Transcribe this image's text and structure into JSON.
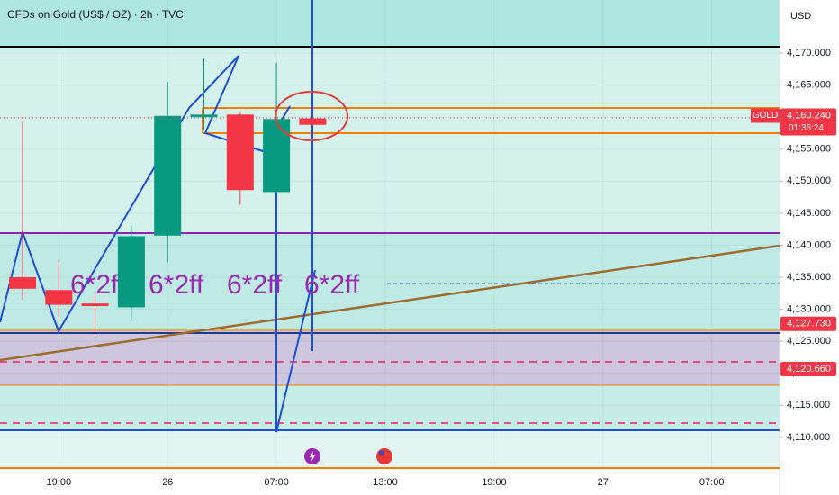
{
  "chart_data": {
    "type": "candlestick",
    "title": "CFDs on Gold (US$ / OZ) · 2h · TVC",
    "y_axis_label": "USD",
    "categories": [
      null,
      "19:00",
      null,
      null,
      "26",
      null,
      null,
      "07:00",
      null,
      null,
      "13:00",
      null,
      null,
      "19:00",
      null,
      null,
      "27",
      null,
      null,
      "07:00",
      null
    ],
    "open": [
      4135.0,
      4133.0,
      4130.9,
      4130.3,
      4141.5,
      4160.0,
      4160.4,
      4148.3,
      4159.8,
      null,
      null,
      null,
      null,
      null,
      null,
      null,
      null,
      null,
      null,
      null,
      null
    ],
    "high": [
      4159.3,
      4137.6,
      4132.4,
      4143.1,
      4165.5,
      4169.2,
      4160.6,
      4168.5,
      4160.0,
      null,
      null,
      null,
      null,
      null,
      null,
      null,
      null,
      null,
      null,
      null,
      null
    ],
    "low": [
      4131.5,
      4128.6,
      4126.2,
      4128.2,
      4137.3,
      4158.0,
      4146.3,
      4148.2,
      4158.6,
      null,
      null,
      null,
      null,
      null,
      null,
      null,
      null,
      null,
      null,
      null,
      null
    ],
    "close": [
      4133.2,
      4130.7,
      4130.5,
      4141.4,
      4160.2,
      4160.4,
      4148.6,
      4159.7,
      4158.8,
      null,
      null,
      null,
      null,
      null,
      null,
      null,
      null,
      null,
      null,
      null,
      null
    ],
    "up_color": "#089981",
    "down_color": "#f23645",
    "ylim": [
      4105.2,
      4178.3
    ],
    "yticks": [
      {
        "value": 4110,
        "label": "4,110.000"
      },
      {
        "value": 4115,
        "label": "4,115.000"
      },
      {
        "value": 4120,
        "label": "4,120.000"
      },
      {
        "value": 4125,
        "label": "4,125.000"
      },
      {
        "value": 4130,
        "label": "4,130.000"
      },
      {
        "value": 4135,
        "label": "4,135.000"
      },
      {
        "value": 4140,
        "label": "4,140.000"
      },
      {
        "value": 4145,
        "label": "4,145.000"
      },
      {
        "value": 4150,
        "label": "4,150.000"
      },
      {
        "value": 4155,
        "label": "4,155.000"
      },
      {
        "value": 4160,
        "label": "4,160.000"
      },
      {
        "value": 4165,
        "label": "4,165.000"
      },
      {
        "value": 4170,
        "label": "4,170.000"
      }
    ],
    "price_labels": [
      {
        "value": 4160.24,
        "label": "4,160.240",
        "tag": "GOLD",
        "countdown": "01:36:24"
      },
      {
        "value": 4127.73,
        "label": "4,127.730"
      },
      {
        "value": 4120.66,
        "label": "4,120.660"
      }
    ],
    "annotations": [
      "6*2ff",
      "6*2ff",
      "6*2ff",
      "6*2ff"
    ]
  }
}
